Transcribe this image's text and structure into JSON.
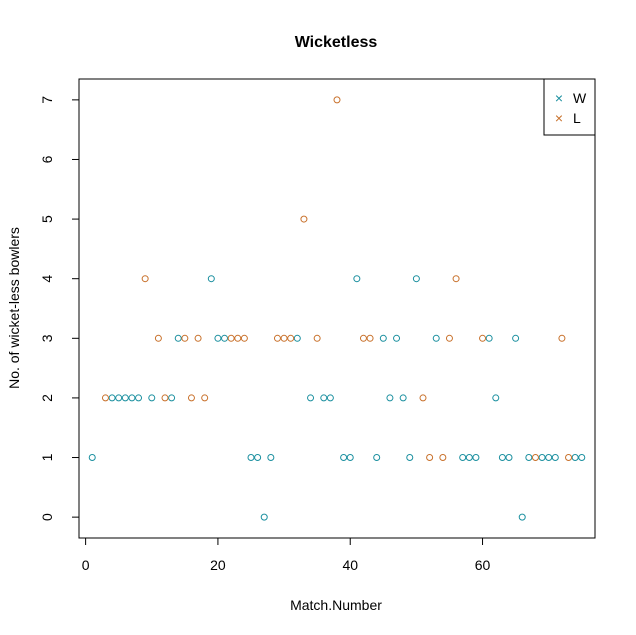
{
  "chart_data": {
    "type": "scatter",
    "title": "Wicketless",
    "xlabel": "Match.Number",
    "ylabel": "No. of wicket-less bowlers",
    "xlim": [
      -1,
      77
    ],
    "ylim": [
      -0.35,
      7.35
    ],
    "xticks": [
      0,
      20,
      40,
      60
    ],
    "yticks": [
      0,
      1,
      2,
      3,
      4,
      5,
      6,
      7
    ],
    "grid": false,
    "legend_position": "top-right",
    "legend_marker": "×",
    "series": [
      {
        "name": "W",
        "color": "#1a8f9f",
        "points": [
          [
            1,
            1
          ],
          [
            4,
            2
          ],
          [
            5,
            2
          ],
          [
            6,
            2
          ],
          [
            7,
            2
          ],
          [
            8,
            2
          ],
          [
            10,
            2
          ],
          [
            13,
            2
          ],
          [
            14,
            3
          ],
          [
            19,
            4
          ],
          [
            20,
            3
          ],
          [
            21,
            3
          ],
          [
            25,
            1
          ],
          [
            26,
            1
          ],
          [
            27,
            0
          ],
          [
            28,
            1
          ],
          [
            32,
            3
          ],
          [
            34,
            2
          ],
          [
            36,
            2
          ],
          [
            37,
            2
          ],
          [
            39,
            1
          ],
          [
            40,
            1
          ],
          [
            41,
            4
          ],
          [
            44,
            1
          ],
          [
            45,
            3
          ],
          [
            46,
            2
          ],
          [
            47,
            3
          ],
          [
            48,
            2
          ],
          [
            49,
            1
          ],
          [
            50,
            4
          ],
          [
            53,
            3
          ],
          [
            57,
            1
          ],
          [
            58,
            1
          ],
          [
            59,
            1
          ],
          [
            61,
            3
          ],
          [
            62,
            2
          ],
          [
            63,
            1
          ],
          [
            64,
            1
          ],
          [
            65,
            3
          ],
          [
            66,
            0
          ],
          [
            67,
            1
          ],
          [
            69,
            1
          ],
          [
            70,
            1
          ],
          [
            71,
            1
          ],
          [
            74,
            1
          ],
          [
            75,
            1
          ]
        ]
      },
      {
        "name": "L",
        "color": "#c8702a",
        "points": [
          [
            3,
            2
          ],
          [
            9,
            4
          ],
          [
            11,
            3
          ],
          [
            12,
            2
          ],
          [
            15,
            3
          ],
          [
            16,
            2
          ],
          [
            17,
            3
          ],
          [
            18,
            2
          ],
          [
            22,
            3
          ],
          [
            23,
            3
          ],
          [
            24,
            3
          ],
          [
            29,
            3
          ],
          [
            30,
            3
          ],
          [
            31,
            3
          ],
          [
            33,
            5
          ],
          [
            35,
            3
          ],
          [
            38,
            7
          ],
          [
            42,
            3
          ],
          [
            43,
            3
          ],
          [
            51,
            2
          ],
          [
            52,
            1
          ],
          [
            54,
            1
          ],
          [
            55,
            3
          ],
          [
            56,
            4
          ],
          [
            60,
            3
          ],
          [
            68,
            1
          ],
          [
            72,
            3
          ],
          [
            73,
            1
          ]
        ]
      }
    ]
  }
}
